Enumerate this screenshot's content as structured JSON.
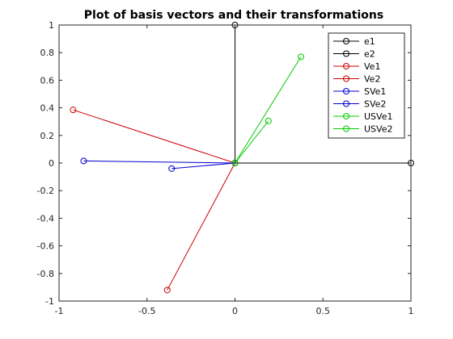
{
  "chart_data": {
    "type": "line",
    "title": "Plot of basis vectors and their transformations",
    "xlabel": "",
    "ylabel": "",
    "xlim": [
      -1,
      1
    ],
    "ylim": [
      -1,
      1
    ],
    "xticks": [
      -1,
      -0.5,
      0,
      0.5,
      1
    ],
    "xtick_labels": [
      "-1",
      "-0.5",
      "0",
      "0.5",
      "1"
    ],
    "yticks": [
      -1,
      -0.8,
      -0.6,
      -0.4,
      -0.2,
      0,
      0.2,
      0.4,
      0.6,
      0.8,
      1
    ],
    "ytick_labels": [
      "-1",
      "-0.8",
      "-0.6",
      "-0.4",
      "-0.2",
      "0",
      "0.2",
      "0.4",
      "0.6",
      "0.8",
      "1"
    ],
    "grid": false,
    "legend_position": "top-right",
    "marker": "circle",
    "series": [
      {
        "name": "e1",
        "color": "#000000",
        "x": [
          0,
          1
        ],
        "y": [
          0,
          0
        ]
      },
      {
        "name": "e2",
        "color": "#000000",
        "x": [
          0,
          0
        ],
        "y": [
          0,
          1
        ]
      },
      {
        "name": "Ve1",
        "color": "#cc0000",
        "x": [
          0,
          -0.92
        ],
        "y": [
          0,
          0.385
        ]
      },
      {
        "name": "Ve2",
        "color": "#cc0000",
        "x": [
          0,
          -0.385
        ],
        "y": [
          0,
          -0.92
        ]
      },
      {
        "name": "SVe1",
        "color": "#0000cc",
        "x": [
          0,
          -0.86
        ],
        "y": [
          0,
          0.015
        ]
      },
      {
        "name": "SVe2",
        "color": "#0000cc",
        "x": [
          0,
          -0.36
        ],
        "y": [
          0,
          -0.04
        ]
      },
      {
        "name": "USVe1",
        "color": "#00cc00",
        "x": [
          0,
          0.375
        ],
        "y": [
          0,
          0.77
        ]
      },
      {
        "name": "USVe2",
        "color": "#00cc00",
        "x": [
          0,
          0.19
        ],
        "y": [
          0,
          0.305
        ]
      }
    ]
  }
}
